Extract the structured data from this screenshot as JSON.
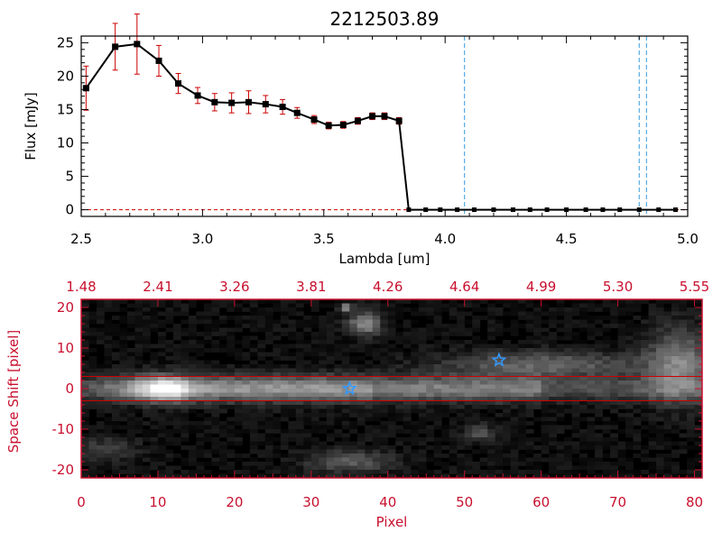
{
  "chart_data": [
    {
      "type": "line",
      "title": "2212503.89",
      "xlabel": "Lambda [um]",
      "ylabel": "Flux [mJy]",
      "xlim": [
        2.5,
        5.0
      ],
      "ylim": [
        -1,
        26
      ],
      "xticks": [
        "2.5",
        "3.0",
        "3.5",
        "4.0",
        "4.5",
        "5.0"
      ],
      "yticks": [
        "0",
        "5",
        "10",
        "15",
        "20",
        "25"
      ],
      "series": [
        {
          "name": "flux",
          "color": "#000000",
          "marker_color": "#000000",
          "errorbar_color": "#cc0000",
          "x": [
            2.52,
            2.64,
            2.73,
            2.82,
            2.9,
            2.98,
            3.05,
            3.12,
            3.19,
            3.26,
            3.33,
            3.39,
            3.46,
            3.52,
            3.58,
            3.64,
            3.7,
            3.75,
            3.81,
            3.85,
            3.92,
            3.98,
            4.05,
            4.12,
            4.2,
            4.28,
            4.35,
            4.42,
            4.5,
            4.58,
            4.65,
            4.72,
            4.8,
            4.88,
            4.95
          ],
          "y": [
            18.2,
            24.4,
            24.8,
            22.3,
            18.9,
            17.1,
            16.1,
            16.0,
            16.1,
            15.8,
            15.4,
            14.5,
            13.5,
            12.6,
            12.7,
            13.3,
            14.0,
            14.0,
            13.3,
            0,
            0,
            0,
            0,
            0,
            0,
            0,
            0,
            0,
            0,
            0,
            0,
            0,
            0,
            0,
            0
          ],
          "err": [
            3.3,
            3.5,
            4.5,
            2.3,
            1.5,
            1.2,
            1.3,
            1.5,
            1.7,
            1.3,
            1.1,
            0.8,
            0.6,
            0.5,
            0.5,
            0.5,
            0.5,
            0.5,
            0.5,
            0.1,
            0.1,
            0.1,
            0.1,
            0.1,
            0.1,
            0.1,
            0.1,
            0.1,
            0.1,
            0.1,
            0.1,
            0.1,
            0.1,
            0.1,
            0.1
          ]
        }
      ],
      "reference_lines": {
        "vertical_x": [
          4.08,
          4.8,
          4.83
        ],
        "vertical_color": "#3399dd",
        "horizontal_y": [
          0
        ],
        "horizontal_color": "#cc0000"
      }
    },
    {
      "type": "heatmap",
      "xlabel": "Pixel",
      "ylabel": "Space Shift [pixel]",
      "xlim": [
        0,
        81
      ],
      "ylim": [
        -22,
        22
      ],
      "xticks": [
        "0",
        "10",
        "20",
        "30",
        "40",
        "50",
        "60",
        "70",
        "80"
      ],
      "yticks": [
        "-20",
        "-10",
        "0",
        "10",
        "20"
      ],
      "top_axis_ticks": [
        "1.48",
        "2.41",
        "3.26",
        "3.81",
        "4.26",
        "4.64",
        "4.99",
        "5.30",
        "5.55"
      ],
      "colormap": "grayscale",
      "aperture_lines_y": [
        3,
        -3
      ],
      "aperture_line_color": "#cc0000",
      "markers": [
        {
          "symbol": "star",
          "x": 35,
          "y": 0,
          "color": "#3399ff"
        },
        {
          "symbol": "star",
          "x": 54.5,
          "y": 7,
          "color": "#3399ff"
        }
      ],
      "axis_color": "#c8102e"
    }
  ]
}
